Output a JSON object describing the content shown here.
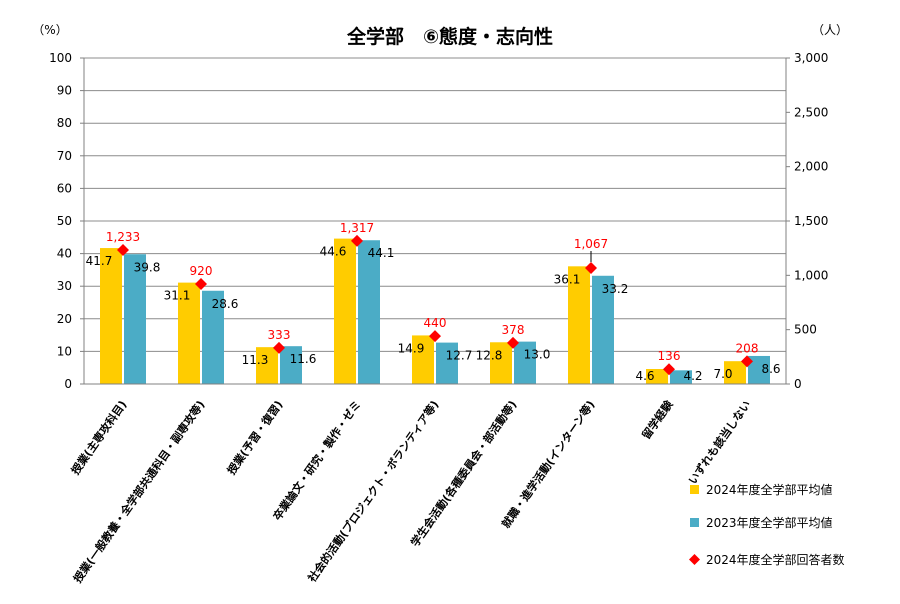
{
  "chart_data": {
    "type": "bar",
    "title": "全学部　⑥態度・志向性",
    "y_unit_left": "（%）",
    "y_unit_right": "（人）",
    "ylim": [
      0,
      100
    ],
    "y2lim": [
      0,
      3000
    ],
    "y_ticks": [
      "0",
      "10",
      "20",
      "30",
      "40",
      "50",
      "60",
      "70",
      "80",
      "90",
      "100"
    ],
    "y2_ticks": [
      "0",
      "500",
      "1,000",
      "1,500",
      "2,000",
      "2,500",
      "3,000"
    ],
    "grid": true,
    "legend_position": "bottom-right",
    "categories": [
      "授業(主専攻科目)",
      "授業(一般教養・全学部共通科目・副専攻等)",
      "授業(予習・復習)",
      "卒業論文・研究・製作・ゼミ",
      "社会的活動(プロジェクト・ボランティア等)",
      "学生会活動(各種委員会・部活動等)",
      "就職・進学活動(インターン等)",
      "留学経験",
      "いずれも該当しない"
    ],
    "series": [
      {
        "name": "2024年度全学部平均値",
        "type": "bar",
        "axis": "left",
        "color": "#ffcc00",
        "values": [
          41.7,
          31.1,
          11.3,
          44.6,
          14.9,
          12.8,
          36.1,
          4.6,
          7.0
        ],
        "labels": [
          "41.7",
          "31.1",
          "11.3",
          "44.6",
          "14.9",
          "12.8",
          "36.1",
          "4.6",
          "7.0"
        ]
      },
      {
        "name": "2023年度全学部平均値",
        "type": "bar",
        "axis": "left",
        "color": "#4bacc6",
        "values": [
          39.8,
          28.6,
          11.6,
          44.1,
          12.7,
          13.0,
          33.2,
          4.2,
          8.6
        ],
        "labels": [
          "39.8",
          "28.6",
          "11.6",
          "44.1",
          "12.7",
          "13.0",
          "33.2",
          "4.2",
          "8.6"
        ]
      },
      {
        "name": "2024年度全学部回答者数",
        "type": "scatter",
        "axis": "right",
        "color": "#ff0000",
        "values": [
          1233,
          920,
          333,
          1317,
          440,
          378,
          1067,
          136,
          208
        ],
        "labels": [
          "1,233",
          "920",
          "333",
          "1,317",
          "440",
          "378",
          "1,067",
          "136",
          "208"
        ]
      }
    ]
  }
}
